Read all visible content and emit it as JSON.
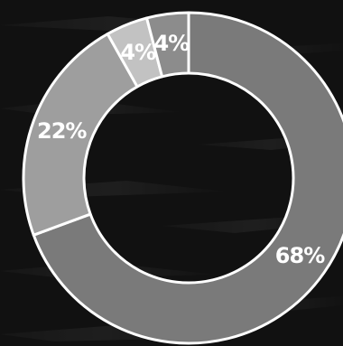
{
  "chart_data": {
    "type": "pie",
    "variant": "donut",
    "categories": [
      "",
      "",
      "",
      ""
    ],
    "values": [
      68,
      22,
      4,
      4
    ],
    "labels": [
      "68%",
      "22%",
      "4%",
      "4%"
    ],
    "colors": [
      "#7a7a7a",
      "#9e9e9e",
      "#c2c2c2",
      "#8c8c8c"
    ],
    "title": "",
    "legend": "none",
    "start_angle_deg": 0,
    "direction": "clockwise"
  },
  "theme": {
    "background": "#111111",
    "stroke": "#ffffff",
    "label_color": "#ffffff"
  }
}
